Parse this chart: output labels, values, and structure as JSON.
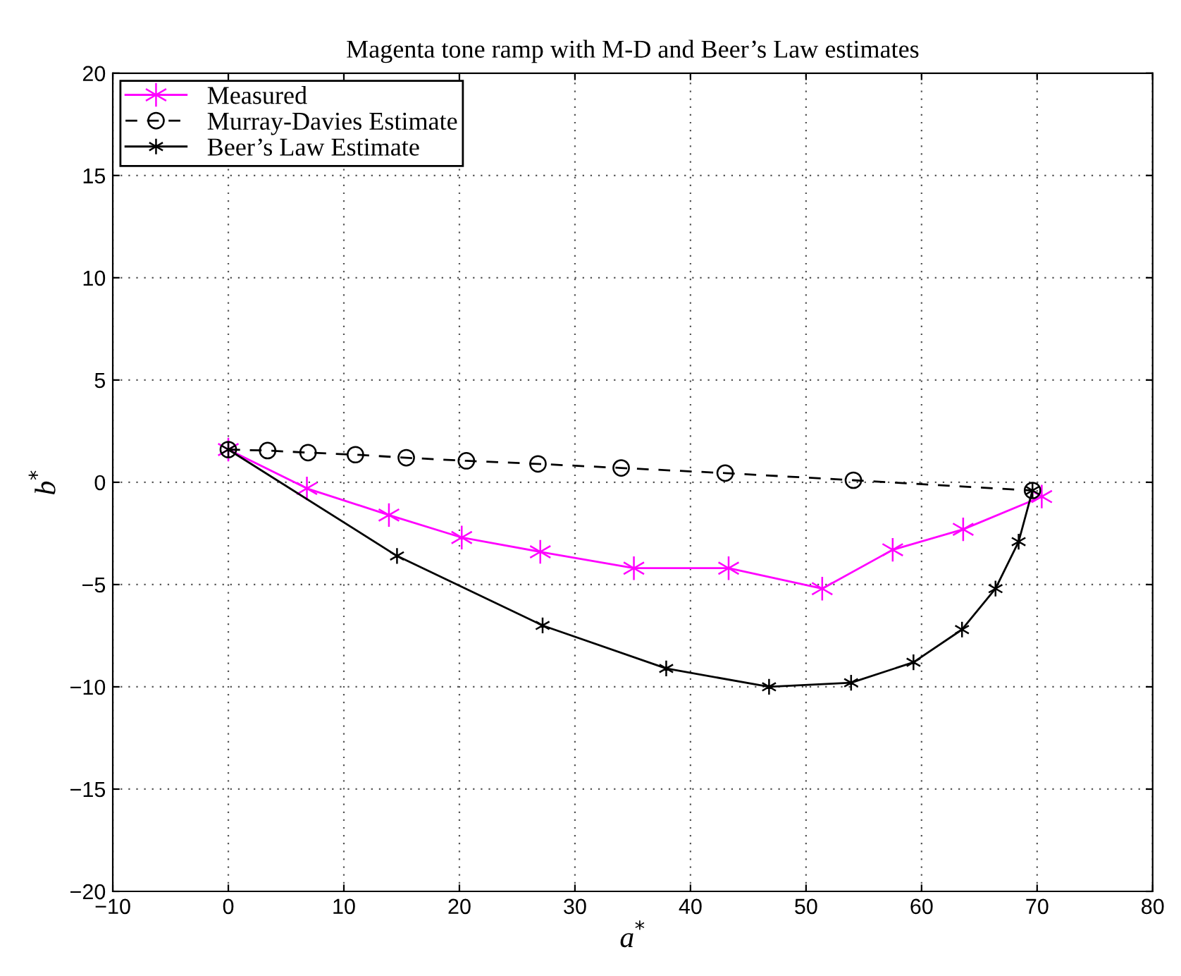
{
  "chart_data": {
    "type": "line",
    "title": "Magenta tone ramp with M-D and Beer’s Law estimates",
    "xlabel": "a$^{*}$",
    "ylabel": "b$^{*}$",
    "xlim": [
      -10,
      80
    ],
    "xticks": [
      -10,
      0,
      10,
      20,
      30,
      40,
      50,
      60,
      70,
      80
    ],
    "ylim": [
      -20,
      20
    ],
    "yticks": [
      -20,
      -15,
      -10,
      -5,
      0,
      5,
      10,
      15,
      20
    ],
    "grid": true,
    "legend": "top left",
    "series": [
      {
        "name": "Measured",
        "color": "#ff00ff",
        "marker": "cross",
        "line_style": "solid",
        "x": [
          0,
          6.8,
          13.9,
          20.2,
          27.0,
          35.1,
          43.3,
          51.4,
          57.5,
          63.6,
          70.4
        ],
        "values": [
          1.6,
          -0.3,
          -1.6,
          -2.7,
          -3.4,
          -4.2,
          -4.2,
          -5.2,
          -3.3,
          -2.3,
          -0.7
        ]
      },
      {
        "name": "Murray-Davies Estimate",
        "color": "#000000",
        "marker": "circle",
        "line_style": "dashed",
        "x": [
          0,
          3.4,
          6.9,
          11.0,
          15.4,
          20.6,
          26.8,
          34.0,
          43.0,
          54.1,
          69.6
        ],
        "values": [
          1.6,
          1.55,
          1.45,
          1.35,
          1.2,
          1.05,
          0.9,
          0.7,
          0.45,
          0.1,
          -0.4
        ]
      },
      {
        "name": "Beer’s Law Estimate",
        "color": "#000000",
        "marker": "cross",
        "line_style": "solid",
        "x": [
          0,
          14.6,
          27.2,
          37.9,
          46.8,
          53.9,
          59.3,
          63.5,
          66.4,
          68.4,
          69.6
        ],
        "values": [
          1.6,
          -3.6,
          -7.0,
          -9.1,
          -10.0,
          -9.8,
          -8.8,
          -7.2,
          -5.2,
          -2.9,
          -0.4
        ]
      }
    ]
  }
}
